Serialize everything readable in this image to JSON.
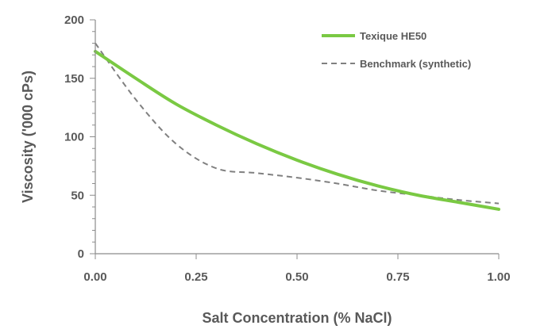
{
  "chart_data": {
    "type": "line",
    "xlabel": "Salt Concentration (% NaCl)",
    "ylabel": "Viscosity ('000 cPs)",
    "xlim": [
      0,
      1
    ],
    "ylim": [
      0,
      200
    ],
    "x_ticks": [
      "0.00",
      "0.25",
      "0.50",
      "0.75",
      "1.00"
    ],
    "y_ticks": [
      "0",
      "50",
      "100",
      "150",
      "200"
    ],
    "grid": false,
    "legend_position": "top-right",
    "series": [
      {
        "name": "Texique HE50",
        "color": "#7ac943",
        "style": "solid",
        "x": [
          0.0,
          0.1,
          0.2,
          0.3,
          0.4,
          0.5,
          0.6,
          0.7,
          0.8,
          0.9,
          1.0
        ],
        "y": [
          173,
          150,
          128,
          110,
          94,
          80,
          68,
          58,
          50,
          44,
          38
        ]
      },
      {
        "name": "Benchmark (synthetic)",
        "color": "#808080",
        "style": "dashed",
        "x": [
          0.0,
          0.1,
          0.2,
          0.3,
          0.4,
          0.5,
          0.6,
          0.7,
          0.8,
          0.9,
          1.0
        ],
        "y": [
          180,
          132,
          94,
          73,
          69,
          65,
          60,
          54,
          50,
          46,
          43
        ]
      }
    ]
  }
}
